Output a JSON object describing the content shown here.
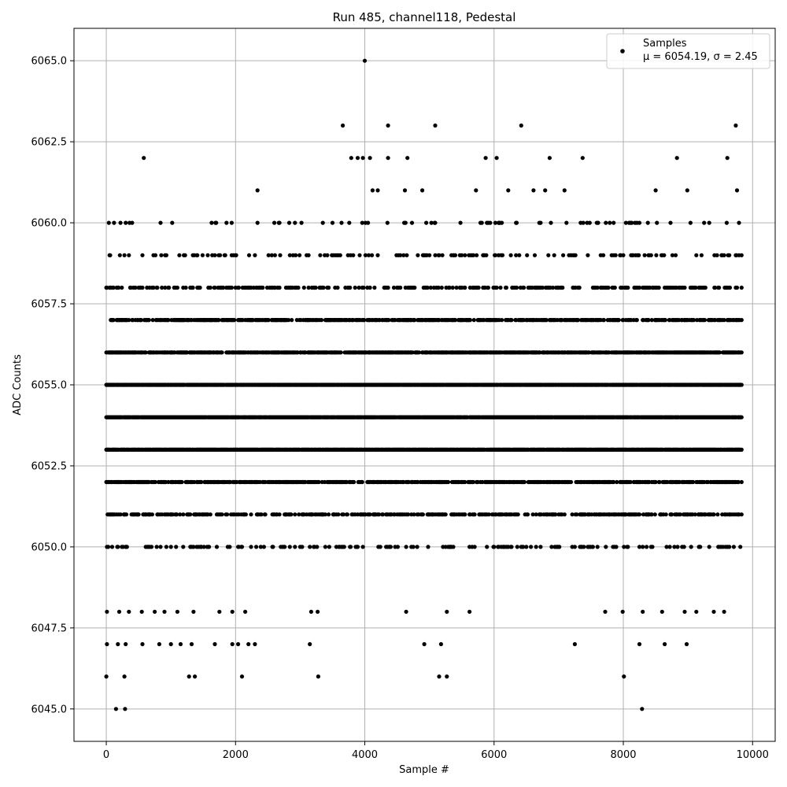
{
  "chart_data": {
    "type": "scatter",
    "title": "Run 485, channel118, Pedestal",
    "xlabel": "Sample #",
    "ylabel": "ADC Counts",
    "xlim": [
      -500,
      10350
    ],
    "ylim": [
      6044,
      6066
    ],
    "x_ticks": [
      0,
      2000,
      4000,
      6000,
      8000,
      10000
    ],
    "x_tick_labels": [
      "0",
      "2000",
      "4000",
      "6000",
      "8000",
      "10000"
    ],
    "y_ticks": [
      6045.0,
      6047.5,
      6050.0,
      6052.5,
      6055.0,
      6057.5,
      6060.0,
      6062.5,
      6065.0
    ],
    "y_tick_labels": [
      "6045.0",
      "6047.5",
      "6050.0",
      "6052.5",
      "6055.0",
      "6057.5",
      "6060.0",
      "6062.5",
      "6065.0"
    ],
    "grid": true,
    "legend_position": "top-right",
    "marker_color": "#000000",
    "n_samples_range": [
      0,
      9830
    ],
    "series": [
      {
        "name": "Samples",
        "stat_text": "μ = 6054.19, σ = 2.45",
        "dense_levels": [
          {
            "y": 6050,
            "density": 0.18
          },
          {
            "y": 6051,
            "density": 0.38
          },
          {
            "y": 6052,
            "density": 0.62
          },
          {
            "y": 6053,
            "density": 0.9
          },
          {
            "y": 6054,
            "density": 0.95
          },
          {
            "y": 6055,
            "density": 0.9
          },
          {
            "y": 6056,
            "density": 0.72
          },
          {
            "y": 6057,
            "density": 0.52
          },
          {
            "y": 6058,
            "density": 0.3
          },
          {
            "y": 6059,
            "density": 0.15
          },
          {
            "y": 6060,
            "density": 0.07
          }
        ],
        "sparse_points": [
          [
            0,
            6046
          ],
          [
            150,
            6045
          ],
          [
            290,
            6045
          ],
          [
            280,
            6046
          ],
          [
            10,
            6047
          ],
          [
            180,
            6047
          ],
          [
            300,
            6047
          ],
          [
            1280,
            6046
          ],
          [
            1370,
            6046
          ],
          [
            2100,
            6046
          ],
          [
            3280,
            6046
          ],
          [
            5150,
            6046
          ],
          [
            5270,
            6046
          ],
          [
            8010,
            6046
          ],
          [
            8290,
            6045
          ],
          [
            560,
            6047
          ],
          [
            820,
            6047
          ],
          [
            1000,
            6047
          ],
          [
            1150,
            6047
          ],
          [
            1320,
            6047
          ],
          [
            1680,
            6047
          ],
          [
            1950,
            6047
          ],
          [
            2040,
            6047
          ],
          [
            2200,
            6047
          ],
          [
            2300,
            6047
          ],
          [
            3150,
            6047
          ],
          [
            4920,
            6047
          ],
          [
            5180,
            6047
          ],
          [
            7250,
            6047
          ],
          [
            8250,
            6047
          ],
          [
            8640,
            6047
          ],
          [
            8980,
            6047
          ],
          [
            10,
            6048
          ],
          [
            200,
            6048
          ],
          [
            350,
            6048
          ],
          [
            550,
            6048
          ],
          [
            750,
            6048
          ],
          [
            900,
            6048
          ],
          [
            1100,
            6048
          ],
          [
            1350,
            6048
          ],
          [
            1750,
            6048
          ],
          [
            1950,
            6048
          ],
          [
            2150,
            6048
          ],
          [
            3170,
            6048
          ],
          [
            3270,
            6048
          ],
          [
            4640,
            6048
          ],
          [
            5270,
            6048
          ],
          [
            5620,
            6048
          ],
          [
            7720,
            6048
          ],
          [
            7990,
            6048
          ],
          [
            8300,
            6048
          ],
          [
            8600,
            6048
          ],
          [
            8950,
            6048
          ],
          [
            9130,
            6048
          ],
          [
            9400,
            6048
          ],
          [
            9560,
            6048
          ],
          [
            580,
            6062
          ],
          [
            2340,
            6061
          ],
          [
            1630,
            6060
          ],
          [
            2340,
            6060
          ],
          [
            2670,
            6060
          ],
          [
            3350,
            6060
          ],
          [
            3640,
            6060
          ],
          [
            3660,
            6063
          ],
          [
            3790,
            6062
          ],
          [
            3890,
            6062
          ],
          [
            3970,
            6062
          ],
          [
            4000,
            6065
          ],
          [
            4080,
            6062
          ],
          [
            4120,
            6061
          ],
          [
            4360,
            6063
          ],
          [
            4360,
            6062
          ],
          [
            4200,
            6061
          ],
          [
            4660,
            6062
          ],
          [
            4620,
            6061
          ],
          [
            4890,
            6061
          ],
          [
            5090,
            6063
          ],
          [
            5090,
            6060
          ],
          [
            5720,
            6061
          ],
          [
            5870,
            6062
          ],
          [
            6040,
            6062
          ],
          [
            6220,
            6061
          ],
          [
            6420,
            6063
          ],
          [
            6610,
            6061
          ],
          [
            6790,
            6061
          ],
          [
            6860,
            6062
          ],
          [
            7090,
            6061
          ],
          [
            7370,
            6062
          ],
          [
            7380,
            6060
          ],
          [
            7730,
            6060
          ],
          [
            7850,
            6060
          ],
          [
            8380,
            6060
          ],
          [
            8500,
            6061
          ],
          [
            8830,
            6062
          ],
          [
            8990,
            6061
          ],
          [
            9610,
            6062
          ],
          [
            9740,
            6063
          ],
          [
            9760,
            6061
          ],
          [
            9790,
            6060
          ]
        ]
      }
    ]
  }
}
